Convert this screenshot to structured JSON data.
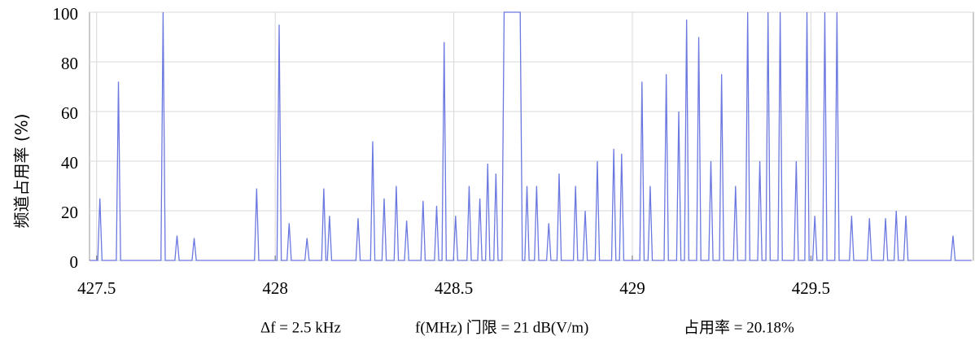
{
  "chart_data": {
    "type": "line",
    "y_label": "频道占用率 (%)",
    "annotations": [
      "Δf = 2.5 kHz",
      "f(MHz) 门限 = 21 dB(V/m)",
      "占用率 = 20.18%"
    ],
    "xlim": [
      427.48,
      429.955
    ],
    "xticks": [
      427.5,
      428,
      428.5,
      429,
      429.5
    ],
    "ylim": [
      0,
      100
    ],
    "yticks": [
      0,
      20,
      40,
      60,
      80,
      100
    ],
    "grid": true,
    "x": [
      427.48,
      427.503,
      427.509,
      427.515,
      427.555,
      427.561,
      427.567,
      427.68,
      427.686,
      427.692,
      427.719,
      427.725,
      427.731,
      427.767,
      427.773,
      427.779,
      427.942,
      427.948,
      427.954,
      428.005,
      428.011,
      428.017,
      428.033,
      428.039,
      428.045,
      428.083,
      428.089,
      428.095,
      428.13,
      428.136,
      428.142,
      428.146,
      428.152,
      428.158,
      428.226,
      428.232,
      428.238,
      428.267,
      428.273,
      428.279,
      428.299,
      428.305,
      428.311,
      428.333,
      428.339,
      428.345,
      428.362,
      428.368,
      428.374,
      428.408,
      428.414,
      428.42,
      428.446,
      428.452,
      428.458,
      428.467,
      428.473,
      428.479,
      428.499,
      428.505,
      428.511,
      428.537,
      428.543,
      428.549,
      428.567,
      428.573,
      428.579,
      428.589,
      428.595,
      428.601,
      428.612,
      428.618,
      428.624,
      428.635,
      428.641,
      428.686,
      428.692,
      428.699,
      428.705,
      428.711,
      428.726,
      428.732,
      428.738,
      428.76,
      428.766,
      428.772,
      428.789,
      428.795,
      428.801,
      428.835,
      428.841,
      428.847,
      428.862,
      428.868,
      428.874,
      428.896,
      428.902,
      428.908,
      428.942,
      428.948,
      428.954,
      428.964,
      428.97,
      428.976,
      429.021,
      429.027,
      429.033,
      429.044,
      429.05,
      429.056,
      429.089,
      429.095,
      429.101,
      429.124,
      429.13,
      429.136,
      429.146,
      429.152,
      429.158,
      429.18,
      429.186,
      429.192,
      429.214,
      429.22,
      429.226,
      429.244,
      429.25,
      429.256,
      429.283,
      429.289,
      429.295,
      429.317,
      429.323,
      429.329,
      429.351,
      429.357,
      429.363,
      429.374,
      429.38,
      429.386,
      429.408,
      429.414,
      429.42,
      429.453,
      429.459,
      429.465,
      429.483,
      429.489,
      429.495,
      429.505,
      429.511,
      429.517,
      429.533,
      429.539,
      429.545,
      429.567,
      429.573,
      429.579,
      429.608,
      429.614,
      429.62,
      429.658,
      429.664,
      429.67,
      429.703,
      429.709,
      429.715,
      429.733,
      429.739,
      429.745,
      429.76,
      429.766,
      429.772,
      429.892,
      429.898,
      429.904,
      429.95
    ],
    "series": [
      {
        "color": "#6a78e0",
        "values": [
          0,
          0,
          25,
          0,
          0,
          72,
          0,
          0,
          100,
          0,
          0,
          10,
          0,
          0,
          9,
          0,
          0,
          29,
          0,
          0,
          95,
          0,
          0,
          15,
          0,
          0,
          9,
          0,
          0,
          29,
          0,
          0,
          18,
          0,
          0,
          17,
          0,
          0,
          48,
          0,
          0,
          25,
          0,
          0,
          30,
          0,
          0,
          16,
          0,
          0,
          24,
          0,
          0,
          22,
          0,
          0,
          88,
          0,
          0,
          18,
          0,
          0,
          30,
          0,
          0,
          25,
          0,
          0,
          39,
          0,
          0,
          35,
          0,
          0,
          100,
          100,
          0,
          0,
          30,
          0,
          0,
          30,
          0,
          0,
          15,
          0,
          0,
          35,
          0,
          0,
          30,
          0,
          0,
          20,
          0,
          0,
          40,
          0,
          0,
          45,
          0,
          0,
          43,
          0,
          0,
          72,
          0,
          0,
          30,
          0,
          0,
          75,
          0,
          0,
          60,
          0,
          0,
          97,
          0,
          0,
          90,
          0,
          0,
          40,
          0,
          0,
          75,
          0,
          0,
          30,
          0,
          0,
          100,
          0,
          0,
          40,
          0,
          0,
          100,
          0,
          0,
          100,
          0,
          0,
          40,
          0,
          0,
          100,
          0,
          0,
          18,
          0,
          0,
          100,
          0,
          0,
          100,
          0,
          0,
          18,
          0,
          0,
          17,
          0,
          0,
          17,
          0,
          0,
          20,
          0,
          0,
          18,
          0,
          0,
          10,
          0,
          0
        ]
      }
    ]
  }
}
